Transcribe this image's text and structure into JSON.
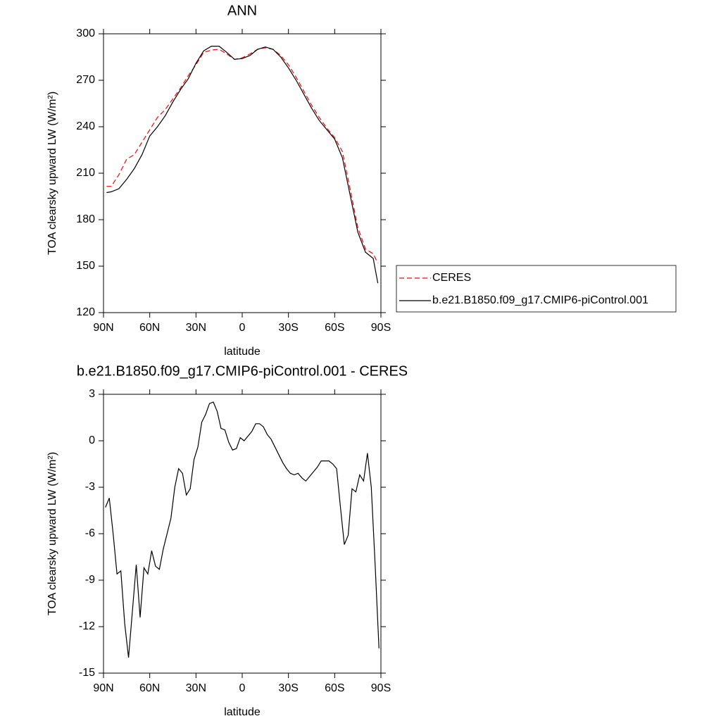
{
  "chart_data": [
    {
      "type": "line",
      "title": "ANN",
      "xlabel": "latitude",
      "ylabel": "TOA clearsky upward LW (W/m²)",
      "x": [
        88,
        85,
        80,
        75,
        70,
        65,
        60,
        55,
        50,
        45,
        40,
        35,
        30,
        25,
        20,
        15,
        10,
        5,
        0,
        -5,
        -10,
        -15,
        -20,
        -25,
        -30,
        -35,
        -40,
        -45,
        -50,
        -55,
        -60,
        -65,
        -70,
        -75,
        -80,
        -85,
        -88
      ],
      "series": [
        {
          "name": "CERES",
          "color": "#ff0000",
          "dashed": true,
          "values": [
            201.5,
            201.5,
            209,
            219,
            222,
            230,
            238,
            246,
            251,
            258,
            265,
            273,
            280,
            288,
            289.5,
            290,
            287,
            283.5,
            284.5,
            287,
            290,
            291,
            290,
            286,
            280,
            272,
            263,
            254,
            246,
            239,
            233,
            224,
            200,
            175,
            161,
            158,
            152
          ]
        },
        {
          "name": "b.e21.B1850.f09_g17.CMIP6-piControl.001",
          "color": "#000000",
          "dashed": false,
          "values": [
            197.5,
            198,
            200,
            206,
            213,
            222,
            234,
            240,
            247,
            256,
            264,
            271,
            281,
            289,
            292,
            292,
            288,
            283.5,
            284,
            286,
            290,
            291.5,
            290,
            285,
            278,
            270,
            261,
            252,
            244,
            238,
            232,
            220,
            196,
            172,
            159,
            155,
            139
          ]
        }
      ],
      "xlim": [
        90,
        -90
      ],
      "xticks": [
        {
          "value": 90,
          "label": "90N"
        },
        {
          "value": 60,
          "label": "60N"
        },
        {
          "value": 30,
          "label": "30N"
        },
        0,
        {
          "value": -30,
          "label": "30S"
        },
        {
          "value": -60,
          "label": "60S"
        },
        {
          "value": -90,
          "label": "90S"
        }
      ],
      "ylim": [
        120,
        300
      ],
      "yticks": [
        120,
        150,
        180,
        210,
        240,
        270,
        300
      ],
      "legend": "right-outside"
    },
    {
      "type": "line",
      "title": "b.e21.B1850.f09_g17.CMIP6-piControl.001 - CERES",
      "xlabel": "latitude",
      "ylabel": "TOA clearsky upward LW (W/m²)",
      "x": [
        88.75,
        86.25,
        83.75,
        81.25,
        78.75,
        76.25,
        73.75,
        71.25,
        68.75,
        66.25,
        63.75,
        61.25,
        58.75,
        56.25,
        53.75,
        51.25,
        48.75,
        46.25,
        43.75,
        41.25,
        38.75,
        36.25,
        33.75,
        31.25,
        28.75,
        26.25,
        23.75,
        21.25,
        18.75,
        16.25,
        13.75,
        11.25,
        8.75,
        6.25,
        3.75,
        1.25,
        -1.25,
        -3.75,
        -6.25,
        -8.75,
        -11.25,
        -13.75,
        -16.25,
        -18.75,
        -21.25,
        -23.75,
        -26.25,
        -28.75,
        -31.25,
        -33.75,
        -36.25,
        -38.75,
        -41.25,
        -43.75,
        -46.25,
        -48.75,
        -51.25,
        -53.75,
        -56.25,
        -58.75,
        -61.25,
        -63.75,
        -66.25,
        -68.75,
        -71.25,
        -73.75,
        -76.25,
        -78.75,
        -81.25,
        -83.75,
        -86.25,
        -88.75
      ],
      "color": "#000000",
      "values": [
        -4.3,
        -3.7,
        -6,
        -8.6,
        -8.4,
        -11.8,
        -14,
        -11,
        -8,
        -11.4,
        -8.2,
        -8.6,
        -7.1,
        -8.1,
        -8.3,
        -7,
        -6,
        -5,
        -3,
        -1.8,
        -2.1,
        -3.5,
        -3.1,
        -1.2,
        -0.4,
        1.2,
        1.7,
        2.4,
        2.5,
        1.9,
        0.8,
        0.7,
        -0.1,
        -0.6,
        -0.5,
        0.2,
        0,
        0.3,
        0.6,
        1.1,
        1.1,
        0.9,
        0.4,
        0.1,
        -0.4,
        -0.9,
        -1.4,
        -1.8,
        -2.1,
        -2.2,
        -2.1,
        -2.4,
        -2.6,
        -2.3,
        -2,
        -1.7,
        -1.3,
        -1.3,
        -1.3,
        -1.5,
        -1.8,
        -4.3,
        -6.7,
        -6.1,
        -3.1,
        -3.3,
        -2.2,
        -2.6,
        -0.8,
        -3,
        -8,
        -13.4
      ],
      "xlim": [
        90,
        -90
      ],
      "xticks": [
        {
          "value": 90,
          "label": "90N"
        },
        {
          "value": 60,
          "label": "60N"
        },
        {
          "value": 30,
          "label": "30N"
        },
        0,
        {
          "value": -30,
          "label": "30S"
        },
        {
          "value": -60,
          "label": "60S"
        },
        {
          "value": -90,
          "label": "90S"
        }
      ],
      "ylim": [
        -15,
        3
      ],
      "yticks": [
        -15,
        -12,
        -9,
        -6,
        -3,
        0,
        3
      ]
    }
  ]
}
